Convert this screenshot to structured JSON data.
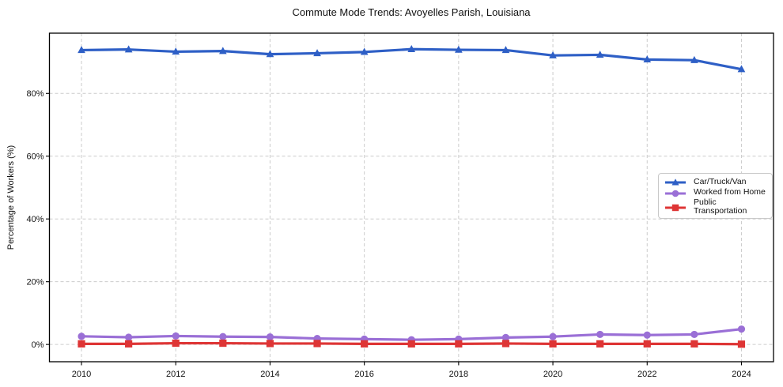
{
  "colors": {
    "background": "#ffffff",
    "grid": "#cccccc",
    "axis": "#000000",
    "text": "#111111",
    "legend_border": "#c9c9c9"
  },
  "chart_data": {
    "type": "line",
    "title": "Commute Mode Trends: Avoyelles Parish, Louisiana",
    "xlabel": "",
    "ylabel": "Percentage of Workers (%)",
    "x": [
      2010,
      2011,
      2012,
      2013,
      2014,
      2015,
      2016,
      2017,
      2018,
      2019,
      2020,
      2021,
      2022,
      2023,
      2024
    ],
    "series": [
      {
        "name": "Car/Truck/Van",
        "color": "#2e5fc6",
        "marker": "triangle",
        "values": [
          93.8,
          94.0,
          93.3,
          93.5,
          92.5,
          92.8,
          93.2,
          94.1,
          93.9,
          93.8,
          92.1,
          92.3,
          90.8,
          90.6,
          87.7
        ]
      },
      {
        "name": "Worked from Home",
        "color": "#9a6fd6",
        "marker": "circle",
        "values": [
          2.6,
          2.3,
          2.7,
          2.5,
          2.4,
          1.9,
          1.7,
          1.5,
          1.7,
          2.2,
          2.5,
          3.2,
          3.0,
          3.2,
          4.9
        ]
      },
      {
        "name": "Public Transportation",
        "color": "#de3535",
        "marker": "square",
        "values": [
          0.2,
          0.2,
          0.4,
          0.4,
          0.3,
          0.3,
          0.2,
          0.2,
          0.2,
          0.3,
          0.2,
          0.2,
          0.2,
          0.2,
          0.1
        ]
      }
    ],
    "xticks": [
      2010,
      2012,
      2014,
      2016,
      2018,
      2020,
      2022,
      2024
    ],
    "xtick_labels": [
      "2010",
      "2012",
      "2014",
      "2016",
      "2018",
      "2020",
      "2022",
      "2024"
    ],
    "yticks": [
      0,
      20,
      40,
      60,
      80
    ],
    "ytick_labels": [
      "0%",
      "20%",
      "40%",
      "60%",
      "80%"
    ],
    "xlim": [
      2009.32,
      2024.68
    ],
    "ylim": [
      -5.5,
      99.2
    ],
    "grid": true,
    "legend_position": "center right"
  }
}
